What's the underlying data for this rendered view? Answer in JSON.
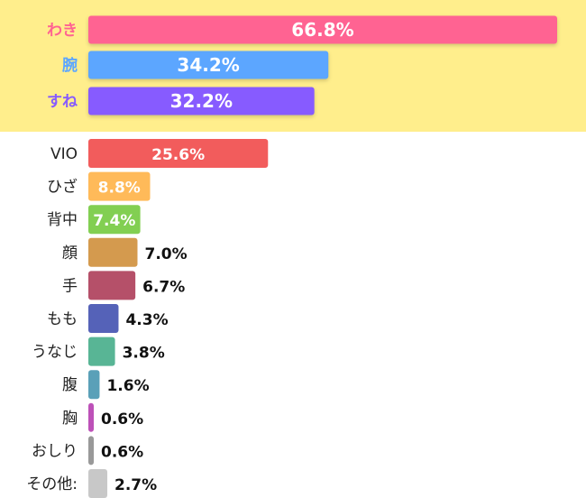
{
  "chart_data": {
    "type": "bar",
    "orientation": "horizontal",
    "unit": "%",
    "highlight_background": "#FFEE8C",
    "xlim": [
      0,
      70
    ],
    "categories": [
      "わき",
      "腕",
      "すね",
      "VIO",
      "ひざ",
      "背中",
      "顔",
      "手",
      "もも",
      "うなじ",
      "腹",
      "胸",
      "おしり",
      "その他:"
    ],
    "values": [
      66.8,
      34.2,
      32.2,
      25.6,
      8.8,
      7.4,
      7.0,
      6.7,
      4.3,
      3.8,
      1.6,
      0.6,
      0.6,
      2.7
    ],
    "value_labels": [
      "66.8%",
      "34.2%",
      "32.2%",
      "25.6%",
      "8.8%",
      "7.4%",
      "7.0%",
      "6.7%",
      "4.3%",
      "3.8%",
      "1.6%",
      "0.6%",
      "0.6%",
      "2.7%"
    ],
    "colors": [
      "#FF6392",
      "#5CA6FF",
      "#875BFF",
      "#F25C5C",
      "#FFBA59",
      "#82CF52",
      "#D49A4E",
      "#B55069",
      "#5562B8",
      "#58B595",
      "#5AA0B8",
      "#BD51B8",
      "#999999",
      "#C8C8C8"
    ],
    "highlighted": [
      true,
      true,
      true,
      false,
      false,
      false,
      false,
      false,
      false,
      false,
      false,
      false,
      false,
      false
    ],
    "grid": false,
    "legend": "none"
  }
}
